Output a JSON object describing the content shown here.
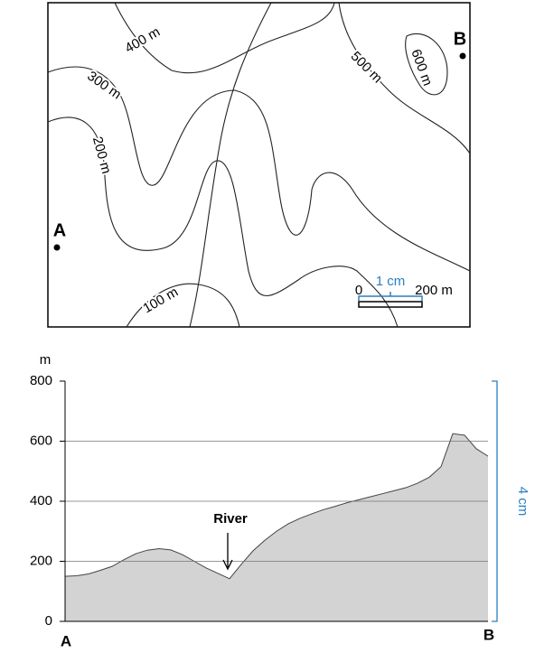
{
  "map": {
    "contours": [
      "400 m",
      "300 m",
      "200 m",
      "100 m",
      "500 m",
      "600 m"
    ],
    "points": [
      "A",
      "B"
    ],
    "scale": {
      "start": "0",
      "length": "1 cm",
      "distance": "200 m"
    }
  },
  "profile": {
    "type": "area",
    "y_unit": "m",
    "ylim": [
      0,
      800
    ],
    "yticks": [
      0,
      200,
      400,
      600,
      800
    ],
    "start_label": "A",
    "end_label": "B",
    "annotation": "River",
    "height_label": "4 cm",
    "values": [
      150,
      152,
      158,
      170,
      183,
      205,
      225,
      237,
      242,
      238,
      222,
      200,
      178,
      160,
      142,
      190,
      235,
      270,
      300,
      325,
      343,
      358,
      372,
      383,
      395,
      405,
      415,
      425,
      435,
      445,
      460,
      480,
      515,
      625,
      620,
      575,
      550
    ],
    "fill": "#d3d3d3",
    "grid": true
  }
}
